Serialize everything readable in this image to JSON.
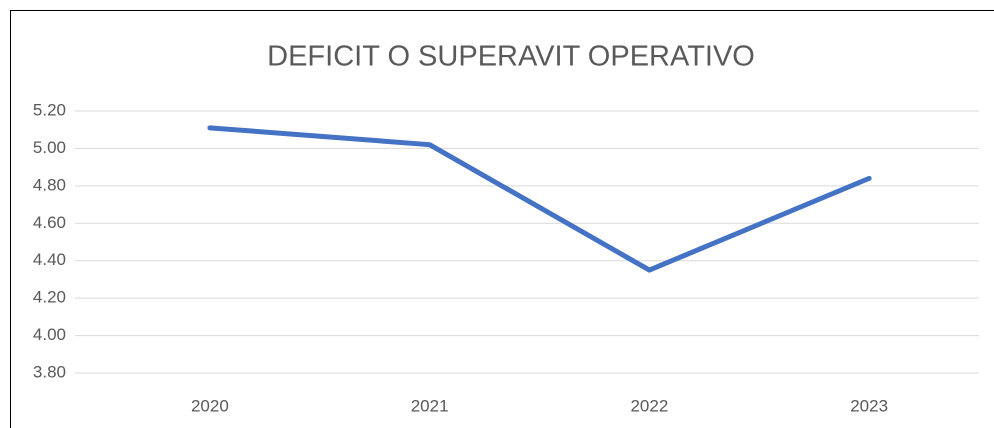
{
  "chart_data": {
    "type": "line",
    "title": "DEFICIT O SUPERAVIT OPERATIVO",
    "categories": [
      "2020",
      "2021",
      "2022",
      "2023"
    ],
    "series": [
      {
        "name": "DEFICIT O SUPERAVIT OPERATIVO",
        "color": "#4472c4",
        "values": [
          5.11,
          5.02,
          4.35,
          4.84
        ]
      }
    ],
    "ylim": [
      3.8,
      5.2
    ],
    "yticks": [
      {
        "value": 3.8,
        "label": "3.80"
      },
      {
        "value": 4.0,
        "label": "4.00"
      },
      {
        "value": 4.2,
        "label": "4.20"
      },
      {
        "value": 4.4,
        "label": "4.40"
      },
      {
        "value": 4.6,
        "label": "4.60"
      },
      {
        "value": 4.8,
        "label": "4.80"
      },
      {
        "value": 5.0,
        "label": "5.00"
      },
      {
        "value": 5.2,
        "label": "5.20"
      }
    ],
    "grid": true
  }
}
